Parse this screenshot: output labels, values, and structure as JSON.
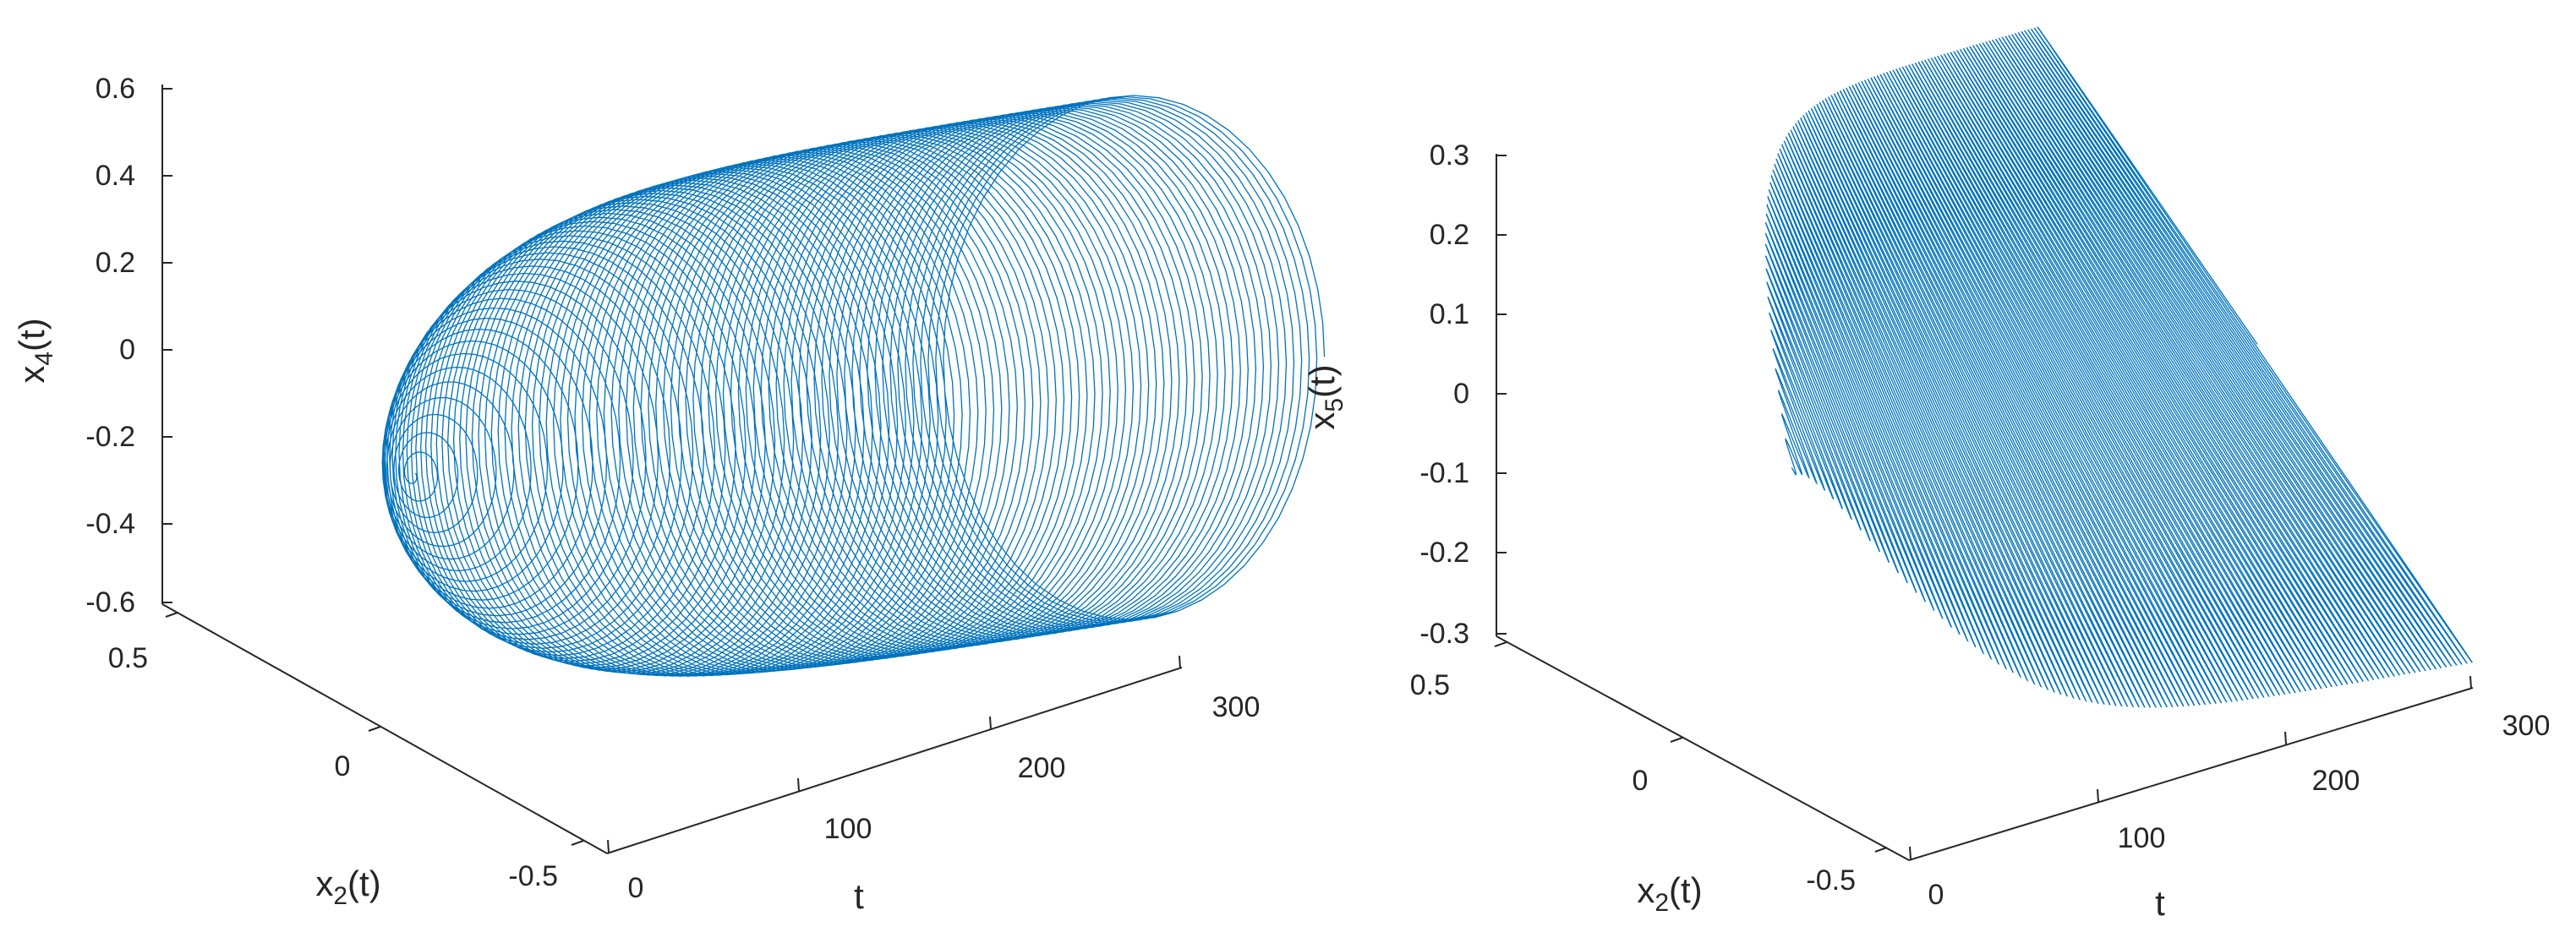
{
  "colors": {
    "series": "#0072BD",
    "axis": "#262626",
    "background": "#ffffff"
  },
  "chart_data": [
    {
      "type": "line",
      "subtype": "3d-line",
      "series": [
        {
          "y_dim_value_range": [
            -0.6,
            0.6
          ]
        }
      ],
      "x": {
        "label": "t",
        "ticks": [
          "0",
          "100",
          "200",
          "300"
        ],
        "range": [
          0,
          300
        ]
      },
      "y": {
        "label_main": "x",
        "label_sub": "2",
        "label_tail": "(t)",
        "ticks": [
          "-0.5",
          "0",
          "0.5"
        ],
        "range": [
          -0.55,
          0.55
        ]
      },
      "z": {
        "label_main": "x",
        "label_sub": "4",
        "label_tail": "(t)",
        "ticks": [
          "-0.6",
          "-0.4",
          "-0.2",
          "0",
          "0.2",
          "0.4",
          "0.6"
        ],
        "range": [
          -0.6,
          0.6
        ]
      },
      "grid": false,
      "legend": "none"
    },
    {
      "type": "line",
      "subtype": "3d-line",
      "x": {
        "label": "t",
        "ticks": [
          "0",
          "100",
          "200",
          "300"
        ],
        "range": [
          0,
          300
        ]
      },
      "y": {
        "label_main": "x",
        "label_sub": "2",
        "label_tail": "(t)",
        "ticks": [
          "-0.5",
          "0",
          "0.5"
        ],
        "range": [
          -0.55,
          0.55
        ]
      },
      "z": {
        "label_main": "x",
        "label_sub": "5",
        "label_tail": "(t)",
        "ticks": [
          "-0.3",
          "-0.2",
          "-0.1",
          "0",
          "0.1",
          "0.2",
          "0.3"
        ],
        "range": [
          -0.3,
          0.3
        ]
      },
      "grid": false,
      "legend": "none"
    }
  ]
}
